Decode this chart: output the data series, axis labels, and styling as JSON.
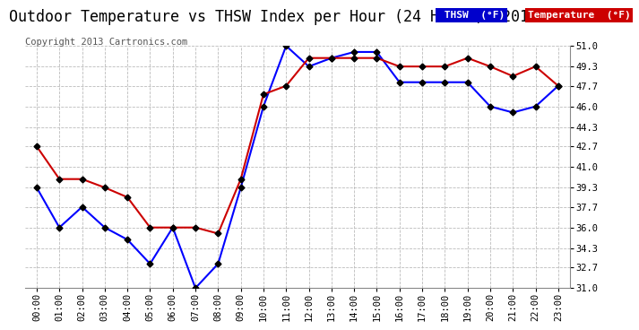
{
  "title": "Outdoor Temperature vs THSW Index per Hour (24 Hours)  20131020",
  "copyright": "Copyright 2013 Cartronics.com",
  "x_labels": [
    "00:00",
    "01:00",
    "02:00",
    "03:00",
    "04:00",
    "05:00",
    "06:00",
    "07:00",
    "08:00",
    "09:00",
    "10:00",
    "11:00",
    "12:00",
    "13:00",
    "14:00",
    "15:00",
    "16:00",
    "17:00",
    "18:00",
    "19:00",
    "20:00",
    "21:00",
    "22:00",
    "23:00"
  ],
  "thsw": [
    39.3,
    36.0,
    37.7,
    36.0,
    35.0,
    33.0,
    36.0,
    31.0,
    33.0,
    39.3,
    46.0,
    51.0,
    49.3,
    50.0,
    50.5,
    50.5,
    48.0,
    48.0,
    48.0,
    48.0,
    46.0,
    45.5,
    46.0,
    47.7
  ],
  "temperature": [
    42.7,
    40.0,
    40.0,
    39.3,
    38.5,
    36.0,
    36.0,
    36.0,
    35.5,
    40.0,
    47.0,
    47.7,
    50.0,
    50.0,
    50.0,
    50.0,
    49.3,
    49.3,
    49.3,
    50.0,
    49.3,
    48.5,
    49.3,
    47.7
  ],
  "ylim": [
    31.0,
    51.0
  ],
  "yticks": [
    31.0,
    32.7,
    34.3,
    36.0,
    37.7,
    39.3,
    41.0,
    42.7,
    44.3,
    46.0,
    47.7,
    49.3,
    51.0
  ],
  "thsw_color": "#0000ff",
  "temp_color": "#cc0000",
  "marker_color": "#000000",
  "bg_color": "#ffffff",
  "grid_color": "#bbbbbb",
  "legend_thsw_bg": "#0000cc",
  "legend_thsw_fg": "#ffffff",
  "legend_temp_bg": "#cc0000",
  "legend_temp_fg": "#ffffff",
  "title_fontsize": 12,
  "copyright_fontsize": 7.5,
  "tick_fontsize": 7.5,
  "ytick_fontsize": 7.5
}
